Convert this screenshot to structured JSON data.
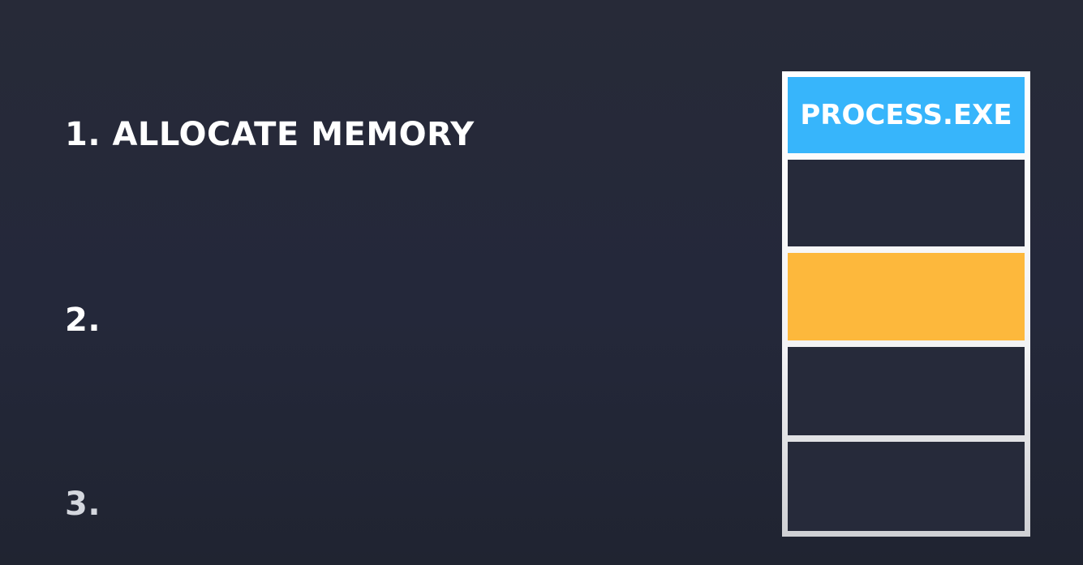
{
  "steps": [
    {
      "label": "1. ALLOCATE MEMORY"
    },
    {
      "label": "2."
    },
    {
      "label": "3."
    }
  ],
  "memory": {
    "blocks": [
      {
        "label": "PROCESS.EXE",
        "color": "#37b5fb"
      },
      {
        "label": "",
        "color": "#262a3a"
      },
      {
        "label": "",
        "color": "#fdb83c"
      },
      {
        "label": "",
        "color": "#262a3a"
      },
      {
        "label": "",
        "color": "#262a3a"
      }
    ]
  }
}
